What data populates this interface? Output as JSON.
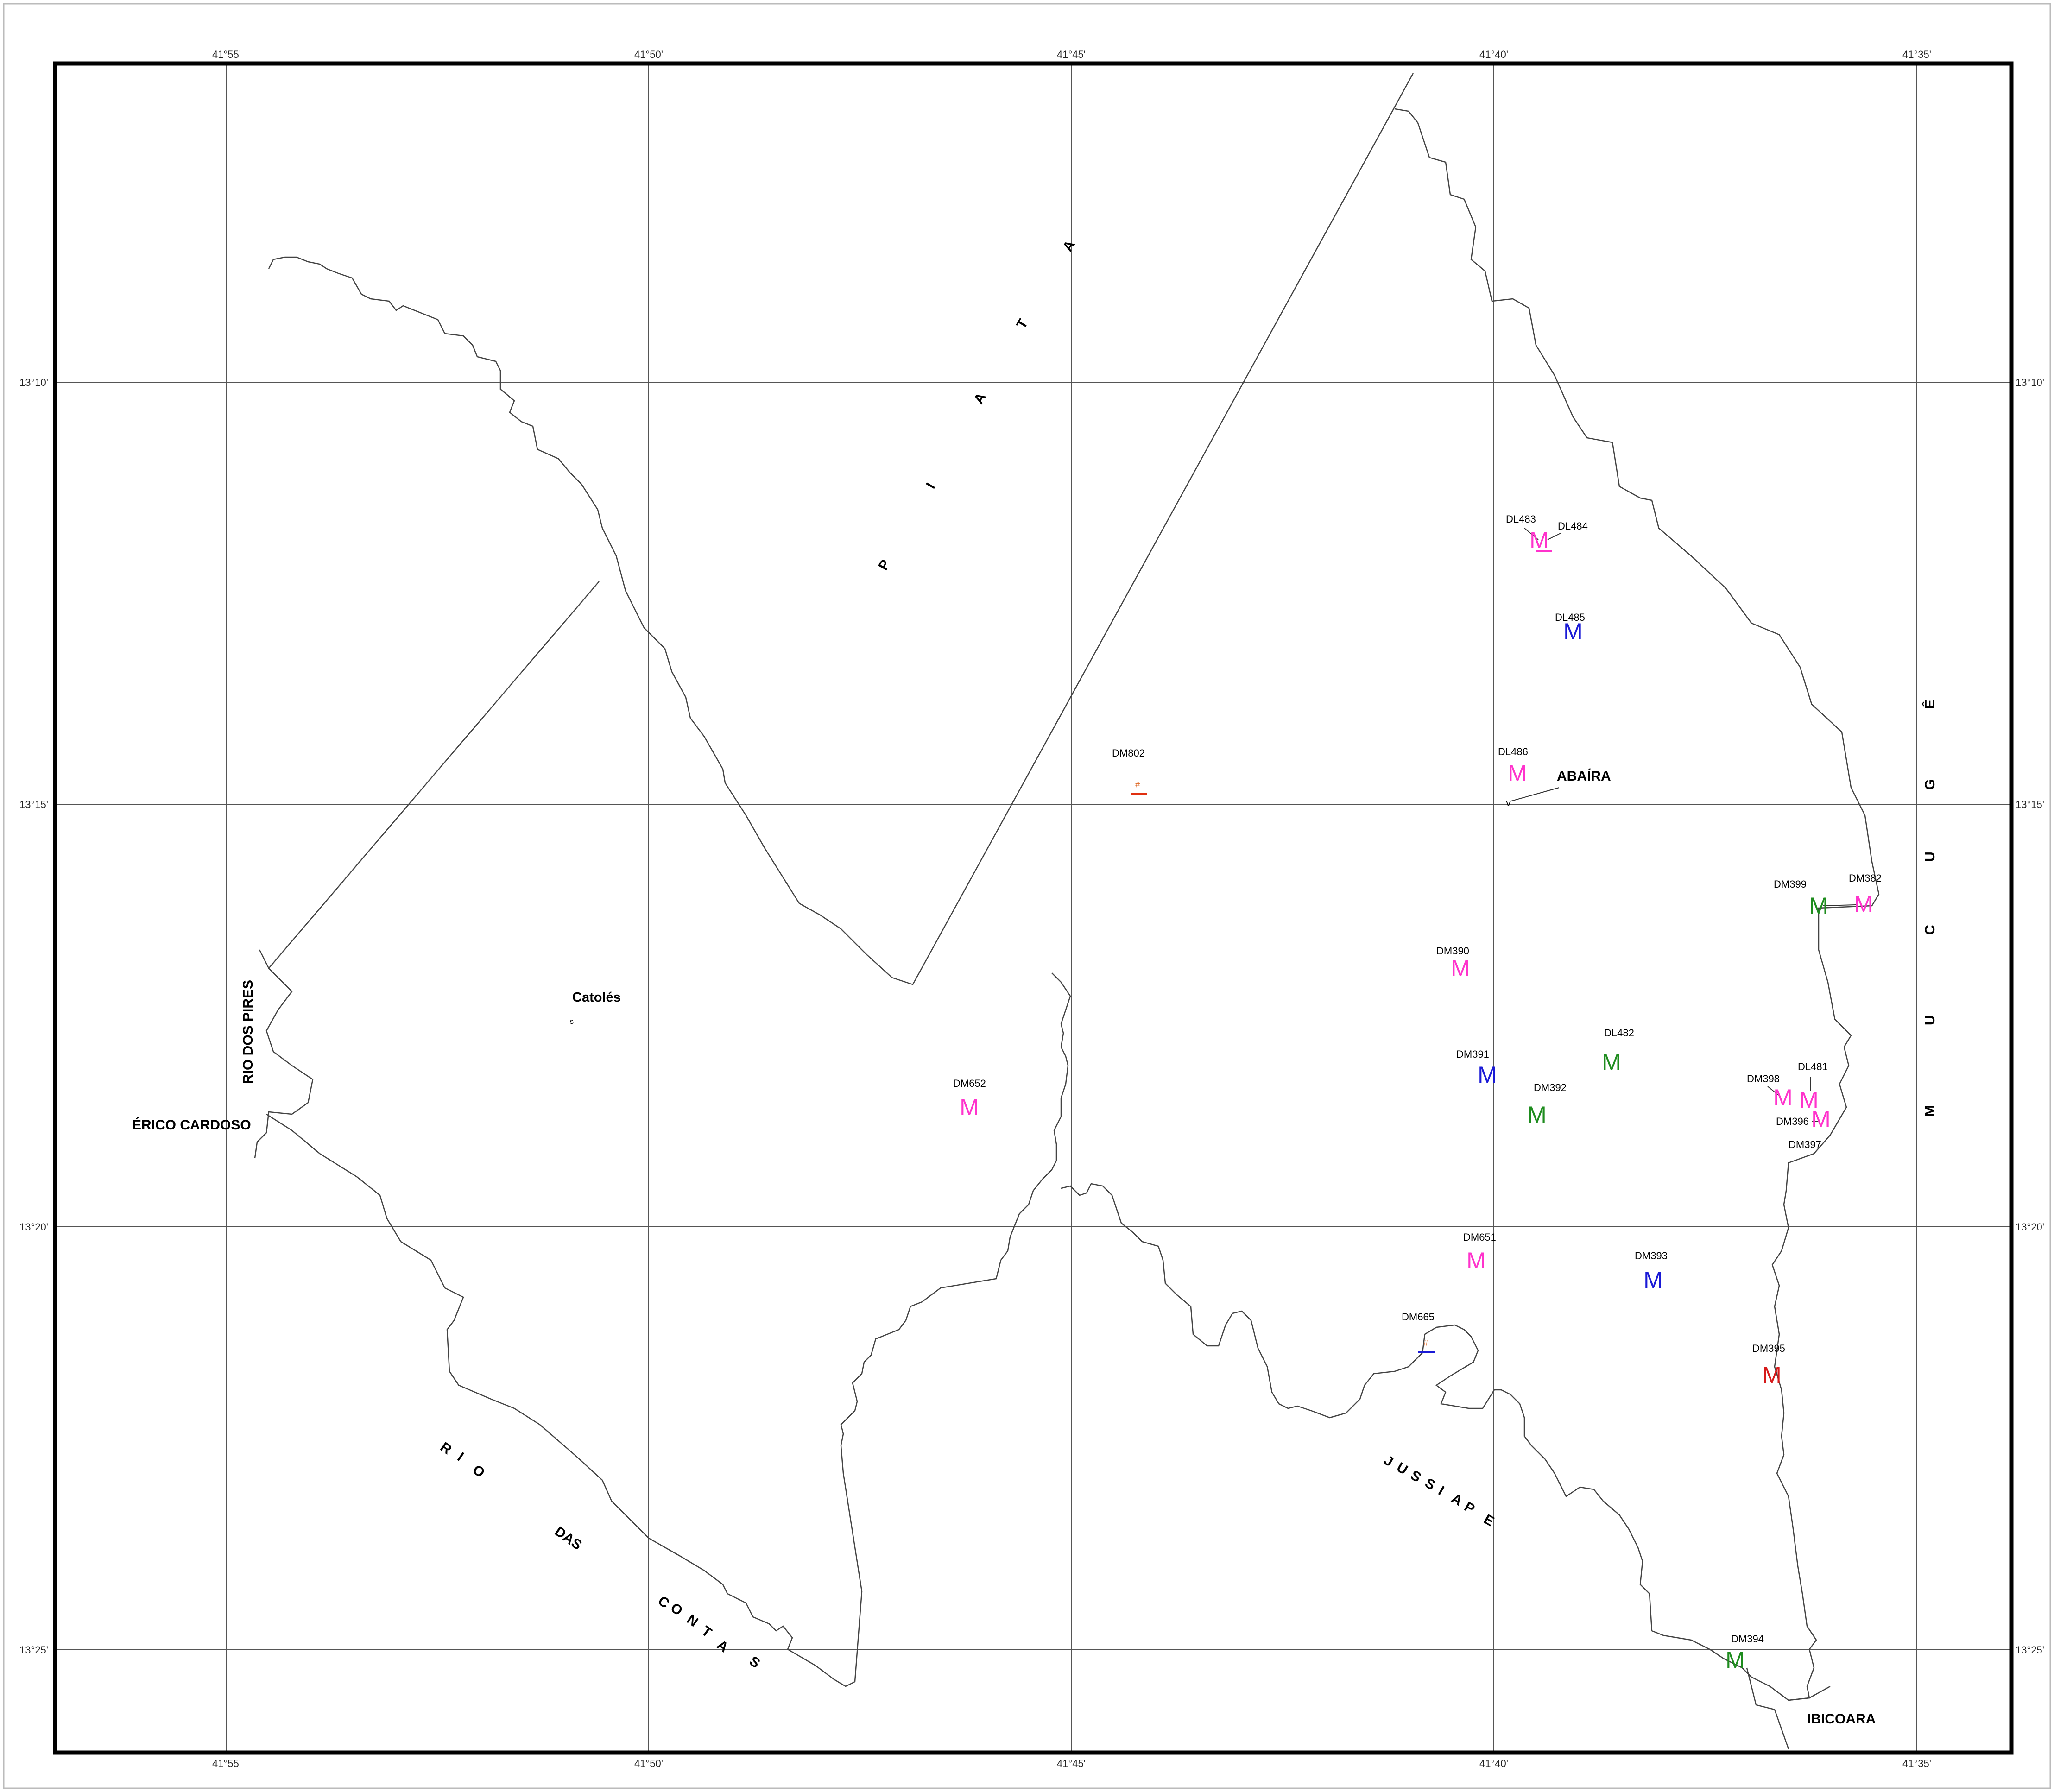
{
  "map": {
    "top_coords": [
      "41°55'",
      "41°50'",
      "41°45'",
      "41°40'",
      "41°35'"
    ],
    "bottom_coords": [
      "41°55'",
      "41°50'",
      "41°45'",
      "41°40'",
      "41°35'"
    ],
    "left_coords": [
      "13°10'",
      "13°15'",
      "13°20'",
      "13°25'"
    ],
    "right_coords": [
      "13°10'",
      "13°15'",
      "13°20'",
      "13°25'"
    ],
    "place_names": {
      "abaira": "ABAÍRA",
      "catoles": "Catolés",
      "erico_cardoso": "ÉRICO CARDOSO",
      "ibicoara": "IBICOARA",
      "rio_dos_pires": "RIO DOS PIRES"
    },
    "regions": {
      "piata": [
        "P",
        "I",
        "A",
        "T",
        "A"
      ],
      "mucuge": [
        "M",
        "U",
        "C",
        "U",
        "G",
        "Ê"
      ],
      "rio_das_contas": [
        "R",
        "I",
        "O",
        "DAS",
        "C",
        "O",
        "N",
        "T",
        "A",
        "S"
      ],
      "jussiape": [
        "J",
        "U",
        "S",
        "S",
        "I",
        "A",
        "P",
        "E"
      ]
    },
    "small_marks": {
      "catoles_symbol": "s",
      "abaira_symbol": "v",
      "hash_symbol": "#"
    },
    "samples": [
      {
        "label": "DL483",
        "marker": "M",
        "color": "#ff33cc"
      },
      {
        "label": "DL484",
        "marker": "",
        "color": "#ff33cc"
      },
      {
        "label": "DL485",
        "marker": "M",
        "color": "#1a1ad6"
      },
      {
        "label": "DL486",
        "marker": "M",
        "color": "#ff33cc"
      },
      {
        "label": "DM802",
        "marker": "",
        "color": "#e03010"
      },
      {
        "label": "DM399",
        "marker": "M",
        "color": "#1e8c1e"
      },
      {
        "label": "DM382",
        "marker": "M",
        "color": "#ff33cc"
      },
      {
        "label": "DM390",
        "marker": "M",
        "color": "#ff33cc"
      },
      {
        "label": "DL482",
        "marker": "M",
        "color": "#1e8c1e"
      },
      {
        "label": "DM391",
        "marker": "M",
        "color": "#1a1ad6"
      },
      {
        "label": "DM392",
        "marker": "M",
        "color": "#1e8c1e"
      },
      {
        "label": "DM652",
        "marker": "M",
        "color": "#ff33cc"
      },
      {
        "label": "DM398",
        "marker": "M",
        "color": "#ff33cc"
      },
      {
        "label": "DL481",
        "marker": "M",
        "color": "#ff33cc"
      },
      {
        "label": "DM396",
        "marker": "M",
        "color": "#ff33cc"
      },
      {
        "label": "DM397",
        "marker": "",
        "color": "#ff33cc"
      },
      {
        "label": "DM651",
        "marker": "M",
        "color": "#ff33cc"
      },
      {
        "label": "DM393",
        "marker": "M",
        "color": "#1a1ad6"
      },
      {
        "label": "DM665",
        "marker": "",
        "color": "#1a1ad6"
      },
      {
        "label": "DM395",
        "marker": "M",
        "color": "#d61a1a"
      },
      {
        "label": "DM394",
        "marker": "M",
        "color": "#1e8c1e"
      }
    ]
  }
}
